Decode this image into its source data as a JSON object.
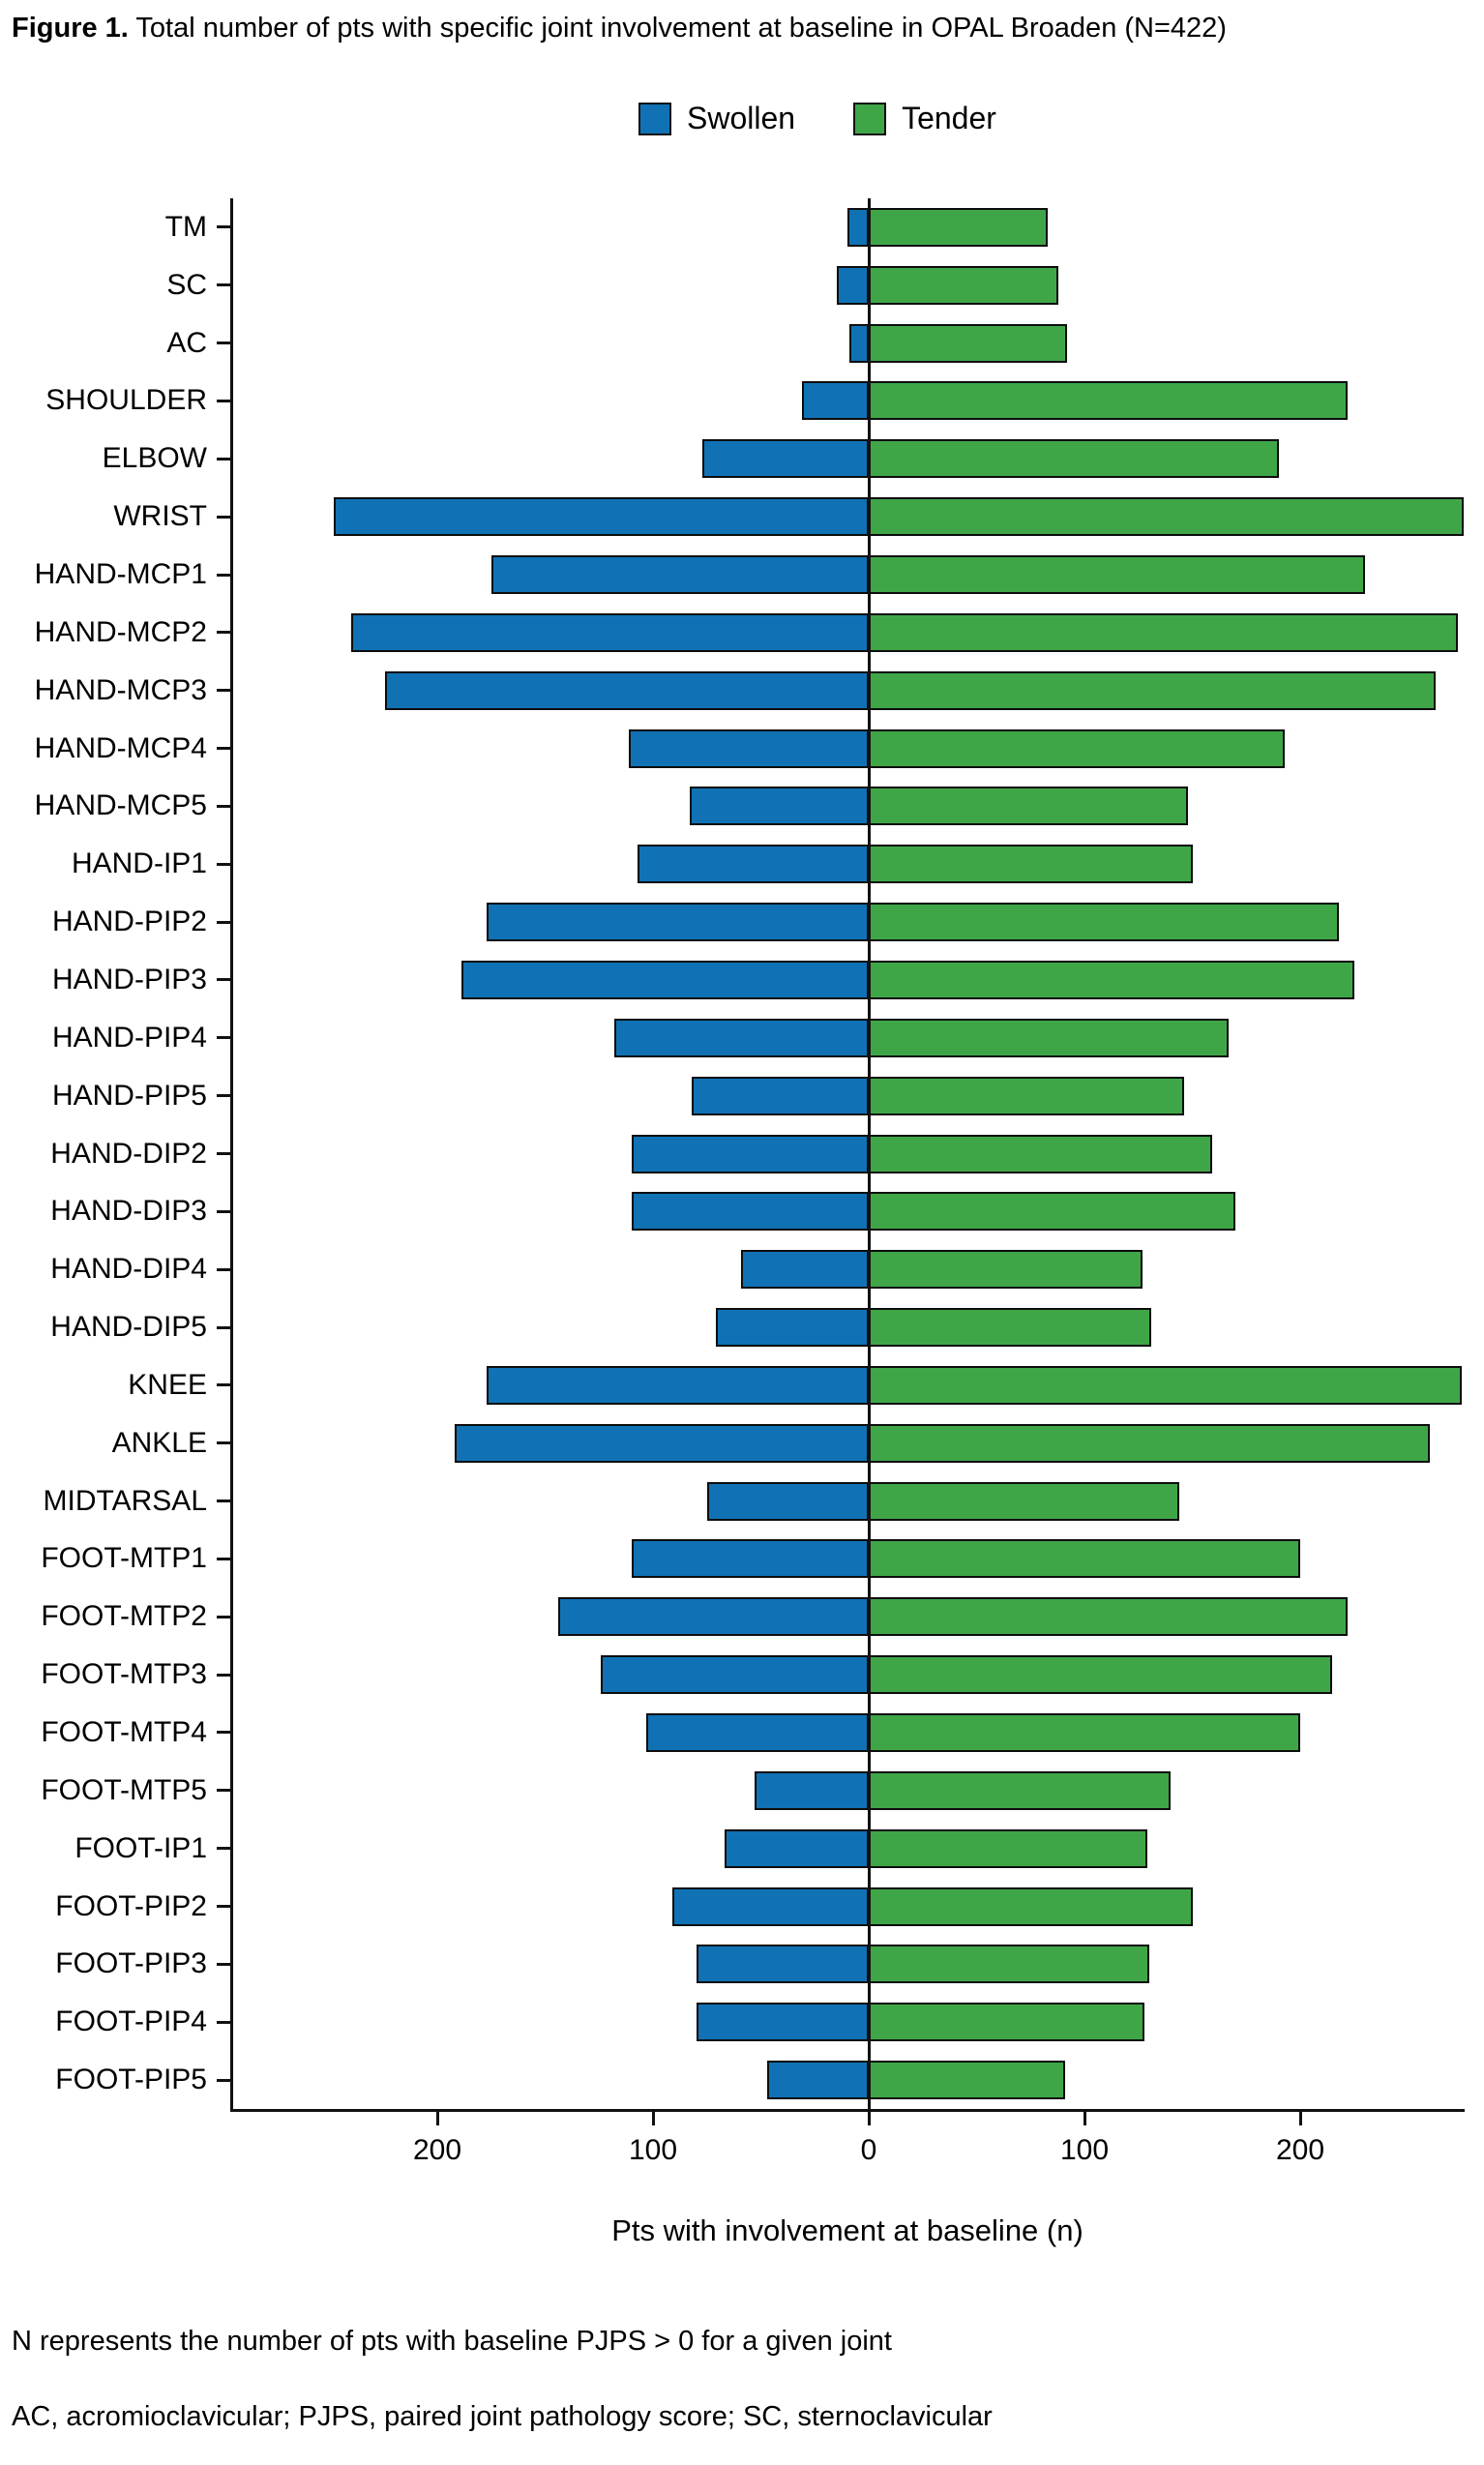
{
  "figure": {
    "label": "Figure 1.",
    "title": " Total number of pts with specific joint involvement at baseline in OPAL Broaden (N=422)"
  },
  "legend": [
    {
      "label": "Swollen",
      "color": "#1072b5"
    },
    {
      "label": "Tender",
      "color": "#3fa648"
    }
  ],
  "chart_data": {
    "type": "bar",
    "orientation": "horizontal-diverging",
    "title": "Total number of pts with specific joint involvement at baseline in OPAL Broaden (N=422)",
    "xlabel": "Pts with involvement at baseline (n)",
    "ylabel": "",
    "grid": false,
    "legend_position": "top-center",
    "xlim": [
      -300,
      280
    ],
    "x_ticks": [
      -200,
      -100,
      0,
      100,
      200
    ],
    "x_tick_labels": [
      "200",
      "100",
      "0",
      "100",
      "200"
    ],
    "categories": [
      "TM",
      "SC",
      "AC",
      "SHOULDER",
      "ELBOW",
      "WRIST",
      "HAND-MCP1",
      "HAND-MCP2",
      "HAND-MCP3",
      "HAND-MCP4",
      "HAND-MCP5",
      "HAND-IP1",
      "HAND-PIP2",
      "HAND-PIP3",
      "HAND-PIP4",
      "HAND-PIP5",
      "HAND-DIP2",
      "HAND-DIP3",
      "HAND-DIP4",
      "HAND-DIP5",
      "KNEE",
      "ANKLE",
      "MIDTARSAL",
      "FOOT-MTP1",
      "FOOT-MTP2",
      "FOOT-MTP3",
      "FOOT-MTP4",
      "FOOT-MTP5",
      "FOOT-IP1",
      "FOOT-PIP2",
      "FOOT-PIP3",
      "FOOT-PIP4",
      "FOOT-PIP5"
    ],
    "series": [
      {
        "name": "Swollen",
        "direction": "left",
        "color": "#1072b5",
        "values": [
          10,
          15,
          9,
          31,
          77,
          248,
          175,
          240,
          224,
          111,
          83,
          107,
          177,
          189,
          118,
          82,
          110,
          110,
          59,
          71,
          177,
          192,
          75,
          110,
          144,
          124,
          103,
          53,
          67,
          91,
          80,
          80,
          47
        ]
      },
      {
        "name": "Tender",
        "direction": "right",
        "color": "#3fa648",
        "values": [
          83,
          88,
          92,
          222,
          190,
          276,
          230,
          273,
          263,
          193,
          148,
          150,
          218,
          225,
          167,
          146,
          159,
          170,
          127,
          131,
          275,
          260,
          144,
          200,
          222,
          215,
          200,
          140,
          129,
          150,
          130,
          128,
          91
        ]
      }
    ]
  },
  "footnotes": [
    "N represents the number of pts with baseline PJPS > 0 for a given joint",
    "AC, acromioclavicular; PJPS, paired joint pathology score; SC, sternoclavicular"
  ]
}
